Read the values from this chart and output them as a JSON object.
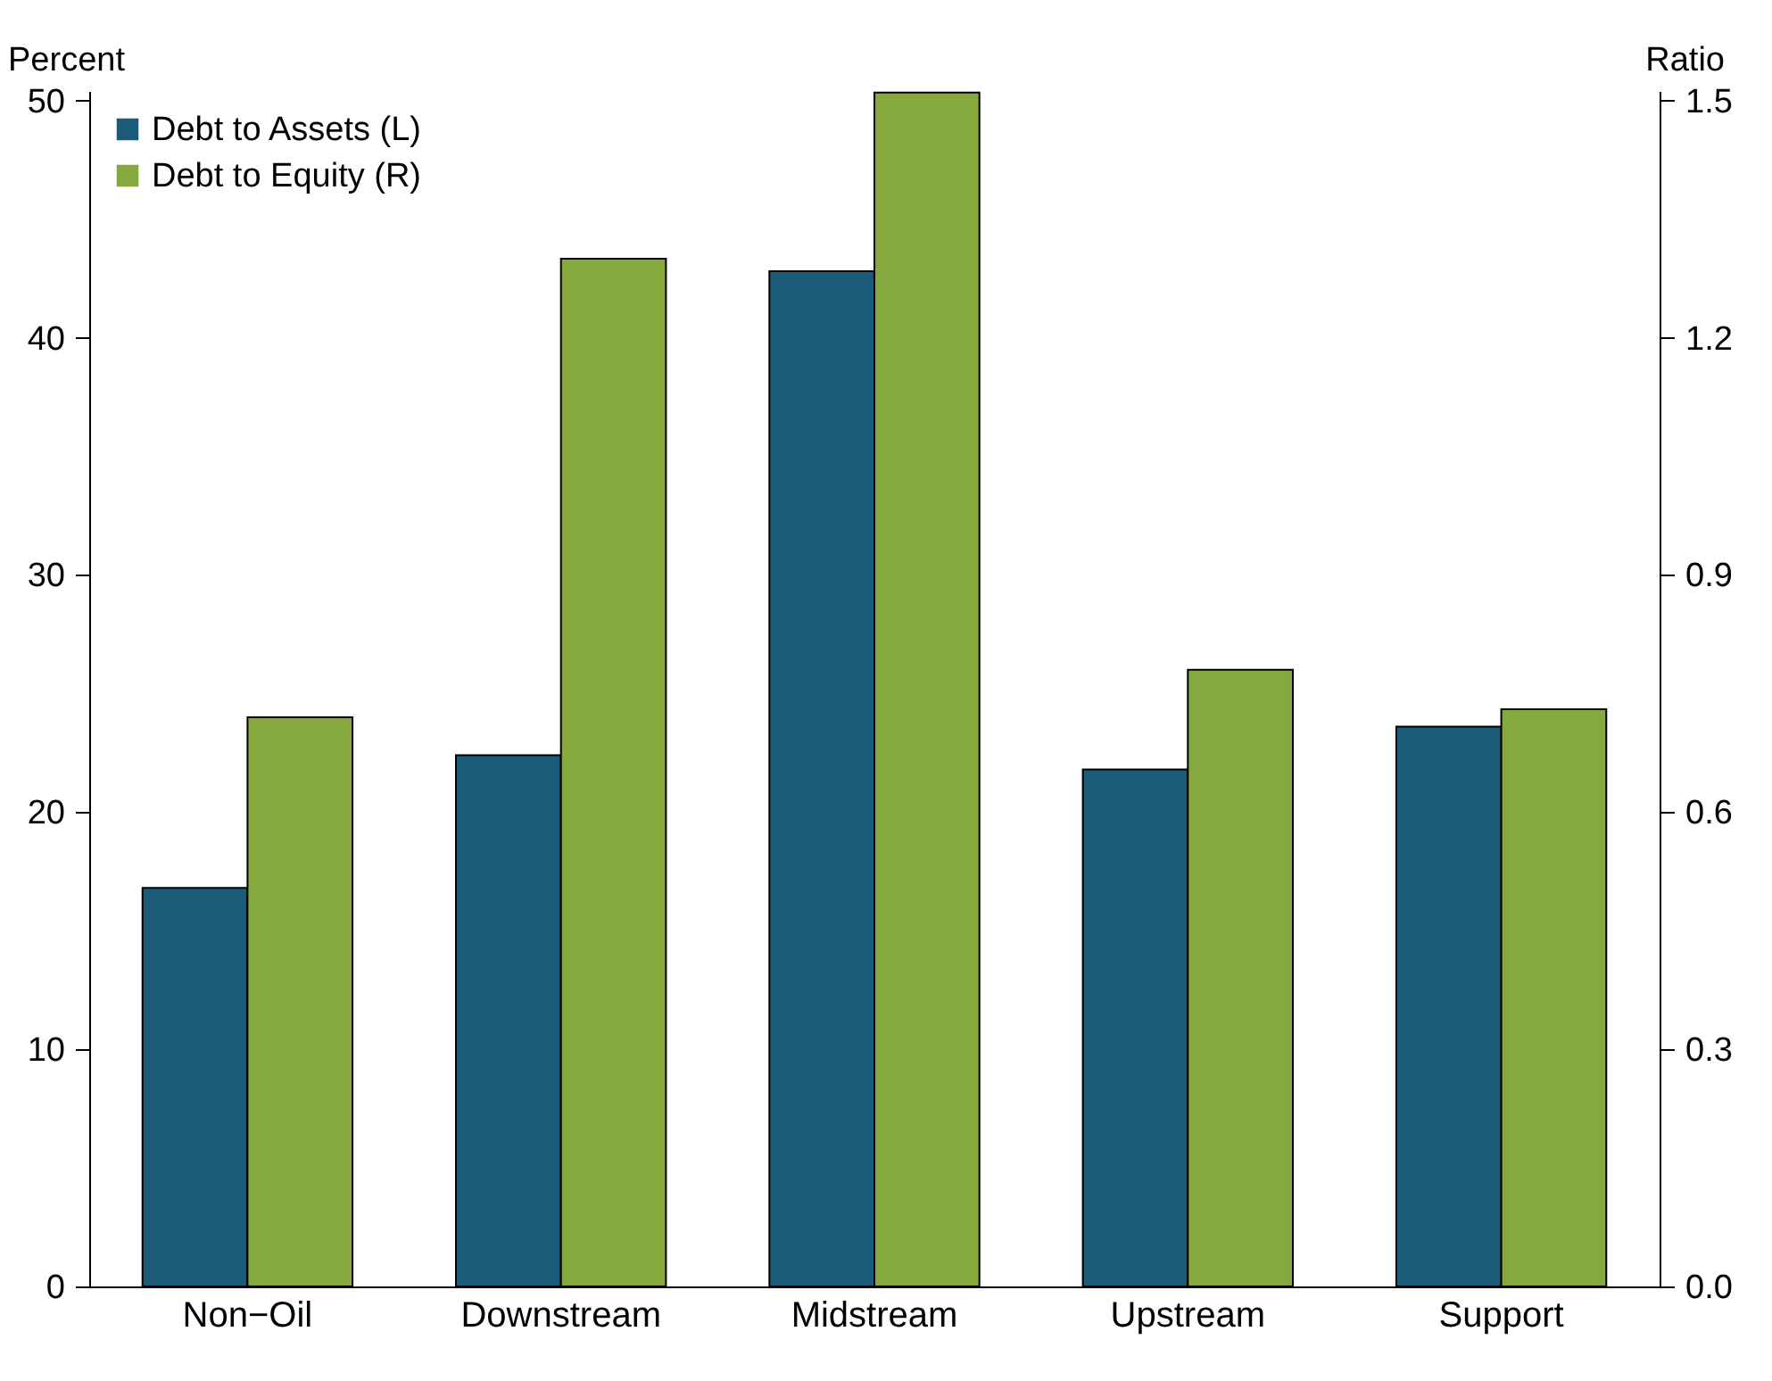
{
  "chart_data": {
    "type": "bar",
    "ylabel": "Percent",
    "y2label": "Ratio",
    "categories": [
      "Non−Oil",
      "Downstream",
      "Midstream",
      "Upstream",
      "Support"
    ],
    "series": [
      {
        "name": "Debt to Assets (L)",
        "color": "#1b5a78",
        "values": [
          16.8,
          22.4,
          42.8,
          21.8,
          23.6
        ]
      },
      {
        "name": "Debt to Equity (R)",
        "color": "#86a93f",
        "axis": "y2",
        "values": [
          0.72,
          1.3,
          1.51,
          0.78,
          0.73
        ]
      }
    ],
    "ylim": [
      0,
      50.4
    ],
    "yticks": [
      0,
      10,
      20,
      30,
      40,
      50
    ],
    "y2lim": [
      0,
      1.512
    ],
    "y2ticks": [
      {
        "value": 0,
        "label": "0.0"
      },
      {
        "value": 0.3,
        "label": "0.3"
      },
      {
        "value": 0.6,
        "label": "0.6"
      },
      {
        "value": 0.9,
        "label": "0.9"
      },
      {
        "value": 1.2,
        "label": "1.2"
      },
      {
        "value": 1.5,
        "label": "1.5"
      }
    ],
    "legend": "top left"
  }
}
